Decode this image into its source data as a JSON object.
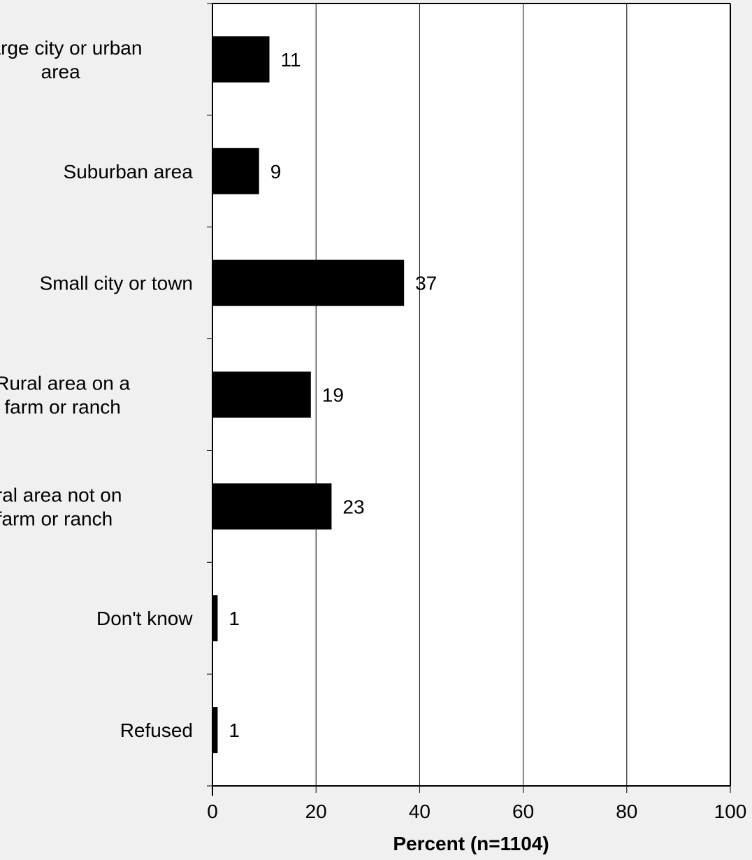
{
  "chart_data": {
    "type": "bar",
    "orientation": "horizontal",
    "categories": [
      [
        "Large city or urban",
        "area"
      ],
      [
        "Suburban area"
      ],
      [
        "Small city or town"
      ],
      [
        "Rural area on a",
        "farm or ranch"
      ],
      [
        "Rural area not on",
        "a farm or ranch"
      ],
      [
        "Don't know"
      ],
      [
        "Refused"
      ]
    ],
    "values": [
      11,
      9,
      37,
      19,
      23,
      1,
      1
    ],
    "data_labels": [
      "11",
      "9",
      "37",
      "19",
      "23",
      "1",
      "1"
    ],
    "xlabel": "Percent (n=1104)",
    "xlim": [
      0,
      100
    ],
    "xticks": [
      0,
      20,
      40,
      60,
      80,
      100
    ],
    "xtick_labels": [
      "0",
      "20",
      "40",
      "60",
      "80",
      "100"
    ],
    "grid": "vertical",
    "bar_color": "#000000",
    "plot_background": "#ffffff",
    "page_background": "#f0f0f0"
  }
}
